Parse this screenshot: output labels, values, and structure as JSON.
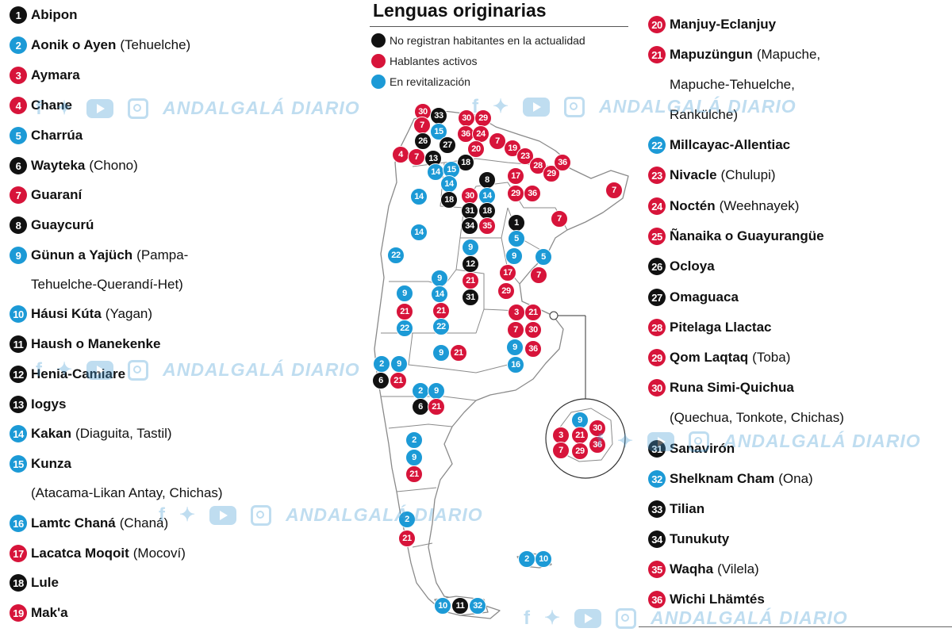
{
  "map": {
    "title": "Lenguas originarias",
    "legend": [
      {
        "label": "No registran habitantes en la actualidad",
        "color": "#111111"
      },
      {
        "label": "Hablantes activos",
        "color": "#d7143a"
      },
      {
        "label": "En revitalización",
        "color": "#1c9ad6"
      }
    ],
    "colors": {
      "extinct": "#111111",
      "active": "#d7143a",
      "revitalization": "#1c9ad6",
      "map_fill": "#ffffff",
      "map_stroke": "#8a8a8a"
    }
  },
  "languages": [
    {
      "n": "1",
      "name": "Abipon",
      "alt": "",
      "status": "black"
    },
    {
      "n": "2",
      "name": "Aonik o Ayen",
      "alt": "(Tehuelche)",
      "status": "blue"
    },
    {
      "n": "3",
      "name": "Aymara",
      "alt": "",
      "status": "red"
    },
    {
      "n": "4",
      "name": "Chane",
      "alt": "",
      "status": "red"
    },
    {
      "n": "5",
      "name": "Charrúa",
      "alt": "",
      "status": "blue"
    },
    {
      "n": "6",
      "name": "Wayteka",
      "alt": "(Chono)",
      "status": "black"
    },
    {
      "n": "7",
      "name": "Guaraní",
      "alt": "",
      "status": "red"
    },
    {
      "n": "8",
      "name": "Guaycurú",
      "alt": "",
      "status": "black"
    },
    {
      "n": "9",
      "name": "Günun a Yajüch",
      "alt": "(Pampa-",
      "alt2": "Tehuelche-Querandí-Het)",
      "status": "blue"
    },
    {
      "n": "10",
      "name": "Háusi Kúta",
      "alt": "(Yagan)",
      "status": "blue"
    },
    {
      "n": "11",
      "name": "Haush o Manekenke",
      "alt": "",
      "status": "black"
    },
    {
      "n": "12",
      "name": "Henia-Camiare",
      "alt": "",
      "status": "black"
    },
    {
      "n": "13",
      "name": "Iogys",
      "alt": "",
      "status": "black"
    },
    {
      "n": "14",
      "name": "Kakan",
      "alt": "(Diaguita, Tastil)",
      "status": "blue"
    },
    {
      "n": "15",
      "name": "Kunza",
      "alt": "",
      "alt2": "(Atacama-Likan Antay, Chichas)",
      "status": "blue"
    },
    {
      "n": "16",
      "name": "Lamtc Chaná",
      "alt": "(Chaná)",
      "status": "blue"
    },
    {
      "n": "17",
      "name": "Lacatca Moqoit",
      "alt": "(Mocoví)",
      "status": "red"
    },
    {
      "n": "18",
      "name": "Lule",
      "alt": "",
      "status": "black"
    },
    {
      "n": "19",
      "name": "Mak'a",
      "alt": "",
      "status": "red"
    },
    {
      "n": "20",
      "name": "Manjuy-Eclanjuy",
      "alt": "",
      "status": "red"
    },
    {
      "n": "21",
      "name": "Mapuzüngun",
      "alt": "(Mapuche,",
      "alt2": "Mapuche-Tehuelche,",
      "alt3": "Rankülche)",
      "status": "red"
    },
    {
      "n": "22",
      "name": "Millcayac-Allentiac",
      "alt": "",
      "status": "blue"
    },
    {
      "n": "23",
      "name": "Nivacle",
      "alt": "(Chulupi)",
      "status": "red"
    },
    {
      "n": "24",
      "name": "Noctén",
      "alt": "(Weehnayek)",
      "status": "red"
    },
    {
      "n": "25",
      "name": "Ñanaika o Guayurangüe",
      "alt": "",
      "status": "red"
    },
    {
      "n": "26",
      "name": "Ocloya",
      "alt": "",
      "status": "black"
    },
    {
      "n": "27",
      "name": "Omaguaca",
      "alt": "",
      "status": "black"
    },
    {
      "n": "28",
      "name": "Pitelaga Llactac",
      "alt": "",
      "status": "red"
    },
    {
      "n": "29",
      "name": "Qom Laqtaq",
      "alt": "(Toba)",
      "status": "red"
    },
    {
      "n": "30",
      "name": "Runa Simi-Quichua",
      "alt": "",
      "alt2": "(Quechua, Tonkote, Chichas)",
      "status": "red"
    },
    {
      "n": "31",
      "name": "Sanavirón",
      "alt": "",
      "status": "black"
    },
    {
      "n": "32",
      "name": "Shelknam Cham",
      "alt": "(Ona)",
      "status": "blue"
    },
    {
      "n": "33",
      "name": "Tilian",
      "alt": "",
      "status": "black"
    },
    {
      "n": "34",
      "name": "Tunukuty",
      "alt": "",
      "status": "black"
    },
    {
      "n": "35",
      "name": "Waqha",
      "alt": "(Vilela)",
      "status": "red"
    },
    {
      "n": "36",
      "name": "Wichi Lhämtés",
      "alt": "",
      "status": "red"
    }
  ],
  "markers": [
    {
      "n": "30",
      "c": "red"
    },
    {
      "n": "33",
      "c": "black"
    },
    {
      "n": "7",
      "c": "red"
    },
    {
      "n": "15",
      "c": "blue"
    },
    {
      "n": "26",
      "c": "black"
    },
    {
      "n": "27",
      "c": "black"
    },
    {
      "n": "30",
      "c": "red"
    },
    {
      "n": "29",
      "c": "red"
    },
    {
      "n": "36",
      "c": "red"
    },
    {
      "n": "24",
      "c": "red"
    },
    {
      "n": "20",
      "c": "red"
    },
    {
      "n": "7",
      "c": "red"
    },
    {
      "n": "19",
      "c": "red"
    },
    {
      "n": "23",
      "c": "red"
    },
    {
      "n": "28",
      "c": "red"
    },
    {
      "n": "29",
      "c": "red"
    },
    {
      "n": "36",
      "c": "red"
    },
    {
      "n": "4",
      "c": "red"
    },
    {
      "n": "7",
      "c": "red"
    },
    {
      "n": "13",
      "c": "black"
    },
    {
      "n": "18",
      "c": "black"
    },
    {
      "n": "14",
      "c": "blue"
    },
    {
      "n": "15",
      "c": "blue"
    },
    {
      "n": "14",
      "c": "blue"
    },
    {
      "n": "8",
      "c": "black"
    },
    {
      "n": "17",
      "c": "red"
    },
    {
      "n": "29",
      "c": "red"
    },
    {
      "n": "36",
      "c": "red"
    },
    {
      "n": "7",
      "c": "red"
    },
    {
      "n": "14",
      "c": "blue"
    },
    {
      "n": "18",
      "c": "black"
    },
    {
      "n": "30",
      "c": "red"
    },
    {
      "n": "14",
      "c": "blue"
    },
    {
      "n": "31",
      "c": "black"
    },
    {
      "n": "18",
      "c": "black"
    },
    {
      "n": "34",
      "c": "black"
    },
    {
      "n": "35",
      "c": "red"
    },
    {
      "n": "1",
      "c": "black"
    },
    {
      "n": "7",
      "c": "red"
    },
    {
      "n": "14",
      "c": "blue"
    },
    {
      "n": "5",
      "c": "blue"
    },
    {
      "n": "22",
      "c": "blue"
    },
    {
      "n": "9",
      "c": "blue"
    },
    {
      "n": "9",
      "c": "blue"
    },
    {
      "n": "5",
      "c": "blue"
    },
    {
      "n": "12",
      "c": "black"
    },
    {
      "n": "17",
      "c": "red"
    },
    {
      "n": "7",
      "c": "red"
    },
    {
      "n": "9",
      "c": "blue"
    },
    {
      "n": "21",
      "c": "red"
    },
    {
      "n": "29",
      "c": "red"
    },
    {
      "n": "9",
      "c": "blue"
    },
    {
      "n": "14",
      "c": "blue"
    },
    {
      "n": "31",
      "c": "black"
    },
    {
      "n": "21",
      "c": "red"
    },
    {
      "n": "21",
      "c": "red"
    },
    {
      "n": "3",
      "c": "red"
    },
    {
      "n": "21",
      "c": "red"
    },
    {
      "n": "22",
      "c": "blue"
    },
    {
      "n": "22",
      "c": "blue"
    },
    {
      "n": "7",
      "c": "red"
    },
    {
      "n": "30",
      "c": "red"
    },
    {
      "n": "9",
      "c": "blue"
    },
    {
      "n": "21",
      "c": "red"
    },
    {
      "n": "9",
      "c": "blue"
    },
    {
      "n": "36",
      "c": "red"
    },
    {
      "n": "16",
      "c": "blue"
    },
    {
      "n": "2",
      "c": "blue"
    },
    {
      "n": "9",
      "c": "blue"
    },
    {
      "n": "6",
      "c": "black"
    },
    {
      "n": "21",
      "c": "red"
    },
    {
      "n": "2",
      "c": "blue"
    },
    {
      "n": "9",
      "c": "blue"
    },
    {
      "n": "6",
      "c": "black"
    },
    {
      "n": "21",
      "c": "red"
    },
    {
      "n": "2",
      "c": "blue"
    },
    {
      "n": "9",
      "c": "blue"
    },
    {
      "n": "21",
      "c": "red"
    },
    {
      "n": "2",
      "c": "blue"
    },
    {
      "n": "21",
      "c": "red"
    },
    {
      "n": "2",
      "c": "blue"
    },
    {
      "n": "10",
      "c": "blue"
    },
    {
      "n": "10",
      "c": "blue"
    },
    {
      "n": "11",
      "c": "black"
    },
    {
      "n": "32",
      "c": "blue"
    },
    {
      "n": "9",
      "c": "blue"
    },
    {
      "n": "30",
      "c": "red"
    },
    {
      "n": "3",
      "c": "red"
    },
    {
      "n": "21",
      "c": "red"
    },
    {
      "n": "36",
      "c": "red"
    },
    {
      "n": "7",
      "c": "red"
    },
    {
      "n": "29",
      "c": "red"
    }
  ],
  "watermark": {
    "text": "ANDALGALÁ DIARIO",
    "icons": [
      "facebook-icon",
      "twitter-icon",
      "youtube-icon",
      "instagram-icon"
    ]
  }
}
